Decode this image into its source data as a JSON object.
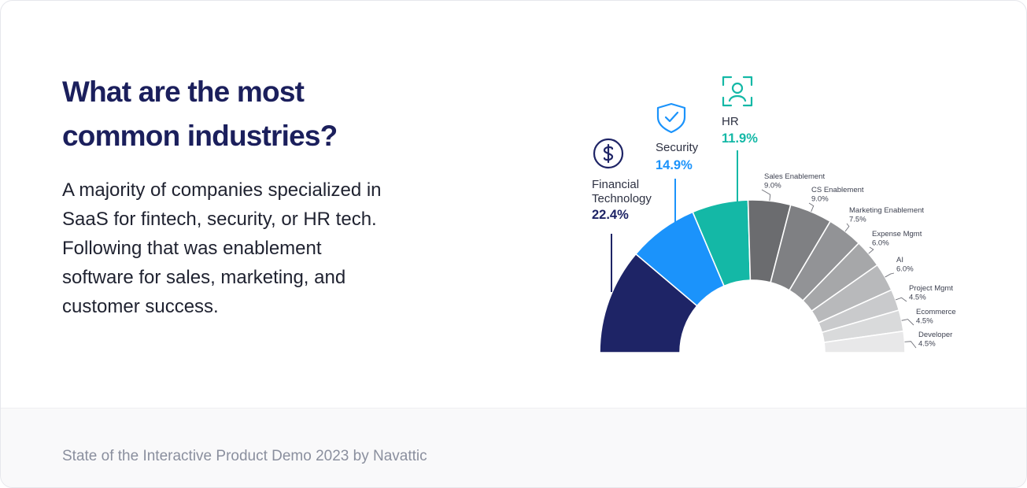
{
  "heading": {
    "line1": "What are the most",
    "line2": "common industries?"
  },
  "body": {
    "line1": "A majority of companies specialized in",
    "line2": "SaaS for fintech, security, or HR tech.",
    "line3": "Following that was enablement",
    "line4": "software for sales, marketing, and",
    "line5": "customer success."
  },
  "footer": {
    "text": "State of the Interactive Product Demo 2023 by Navattic"
  },
  "icons": {
    "fintech": "dollar-circle-icon",
    "security": "shield-check-icon",
    "hr": "user-scan-icon"
  },
  "chart_data": {
    "type": "pie",
    "variant": "half-donut",
    "categories": [
      "Financial Technology",
      "Security",
      "HR",
      "Sales Enablement",
      "CS Enablement",
      "Marketing Enablement",
      "Expense Mgmt",
      "AI",
      "Project Mgmt",
      "Ecommerce",
      "Developer"
    ],
    "values": [
      22.4,
      14.9,
      11.9,
      9.0,
      9.0,
      7.5,
      6.0,
      6.0,
      4.5,
      4.5,
      4.5
    ],
    "value_labels": [
      "22.4%",
      "14.9%",
      "11.9%",
      "9.0%",
      "9.0%",
      "7.5%",
      "6.0%",
      "6.0%",
      "4.5%",
      "4.5%",
      "4.5%"
    ],
    "colors": [
      "#1e2466",
      "#1b93fb",
      "#14b8a6",
      "#6b6c6f",
      "#7f8083",
      "#929396",
      "#a6a7a9",
      "#b8b9bb",
      "#c9cacc",
      "#d9dadb",
      "#e8e8e9"
    ],
    "label_colors": [
      "#1e2466",
      "#1b93fb",
      "#14b8a6"
    ]
  }
}
